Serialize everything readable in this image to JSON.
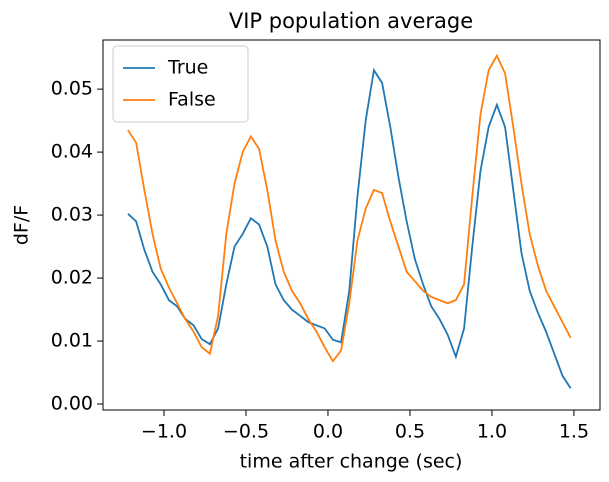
{
  "chart_data": {
    "type": "line",
    "title": "VIP population average",
    "x_label": "time after change (sec)",
    "y_label": "dF/F",
    "x": [
      -1.22,
      -1.17,
      -1.12,
      -1.07,
      -1.02,
      -0.97,
      -0.92,
      -0.87,
      -0.82,
      -0.77,
      -0.72,
      -0.67,
      -0.62,
      -0.57,
      -0.52,
      -0.47,
      -0.42,
      -0.37,
      -0.32,
      -0.27,
      -0.22,
      -0.17,
      -0.12,
      -0.07,
      -0.02,
      0.03,
      0.08,
      0.13,
      0.18,
      0.23,
      0.28,
      0.33,
      0.38,
      0.43,
      0.48,
      0.53,
      0.58,
      0.63,
      0.68,
      0.73,
      0.78,
      0.83,
      0.88,
      0.93,
      0.98,
      1.03,
      1.08,
      1.13,
      1.18,
      1.23,
      1.28,
      1.33,
      1.38,
      1.43,
      1.48
    ],
    "series": [
      {
        "name": "True",
        "color": "#1f77b4",
        "values": [
          0.0302,
          0.029,
          0.0245,
          0.021,
          0.019,
          0.0165,
          0.0155,
          0.0135,
          0.0125,
          0.0103,
          0.0095,
          0.012,
          0.019,
          0.025,
          0.027,
          0.0295,
          0.0285,
          0.025,
          0.019,
          0.0165,
          0.015,
          0.014,
          0.013,
          0.0125,
          0.012,
          0.0102,
          0.0098,
          0.018,
          0.033,
          0.045,
          0.053,
          0.051,
          0.044,
          0.036,
          0.029,
          0.023,
          0.019,
          0.0155,
          0.0135,
          0.011,
          0.0075,
          0.012,
          0.025,
          0.037,
          0.044,
          0.0475,
          0.044,
          0.034,
          0.024,
          0.018,
          0.0145,
          0.0115,
          0.008,
          0.0045,
          0.0025
        ]
      },
      {
        "name": "False",
        "color": "#ff7f0e",
        "values": [
          0.0435,
          0.0415,
          0.034,
          0.027,
          0.0215,
          0.0185,
          0.016,
          0.0135,
          0.0115,
          0.009,
          0.008,
          0.014,
          0.027,
          0.035,
          0.04,
          0.0425,
          0.0405,
          0.034,
          0.026,
          0.021,
          0.018,
          0.016,
          0.0135,
          0.0115,
          0.009,
          0.0068,
          0.0085,
          0.016,
          0.026,
          0.031,
          0.034,
          0.0335,
          0.029,
          0.025,
          0.021,
          0.0195,
          0.018,
          0.017,
          0.0165,
          0.016,
          0.0165,
          0.019,
          0.033,
          0.046,
          0.053,
          0.0553,
          0.0525,
          0.044,
          0.035,
          0.027,
          0.022,
          0.018,
          0.0155,
          0.013,
          0.0105
        ]
      }
    ],
    "xlim": [
      -1.372,
      1.659
    ],
    "ylim": [
      -0.00095,
      0.0578
    ],
    "xticks": [
      {
        "value": -1.0,
        "label": "−1.0"
      },
      {
        "value": -0.5,
        "label": "−0.5"
      },
      {
        "value": 0.0,
        "label": "0.0"
      },
      {
        "value": 0.5,
        "label": "0.5"
      },
      {
        "value": 1.0,
        "label": "1.0"
      },
      {
        "value": 1.5,
        "label": "1.5"
      }
    ],
    "yticks": [
      {
        "value": 0,
        "label": "0.00"
      },
      {
        "value": 0.01,
        "label": "0.01"
      },
      {
        "value": 0.02,
        "label": "0.02"
      },
      {
        "value": 0.03,
        "label": "0.03"
      },
      {
        "value": 0.04,
        "label": "0.04"
      },
      {
        "value": 0.05,
        "label": "0.05"
      }
    ],
    "grid": false,
    "legend": "upper-left"
  }
}
